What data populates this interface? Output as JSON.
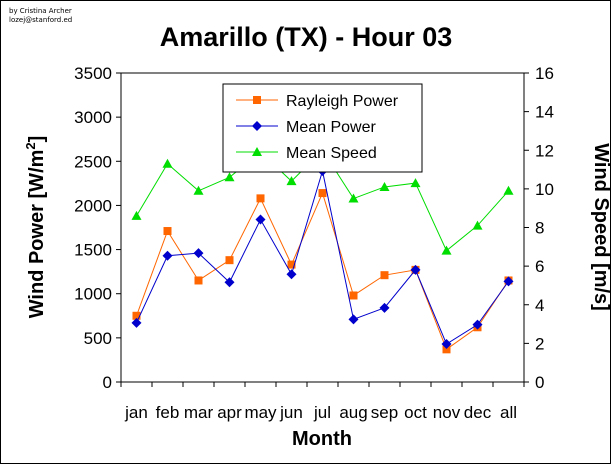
{
  "credit": [
    "by Cristina Archer",
    "lozej@stanford.ed"
  ],
  "chart_data": {
    "type": "line",
    "title": "Amarillo (TX) - Hour 03",
    "xlabel": "Month",
    "ylabel_left": "Wind Power [W/m2]",
    "ylabel_left_base": "Wind Power [W/m",
    "ylabel_left_sup": "2",
    "ylabel_left_close": "]",
    "ylabel_right": "Wind Speed [m/s]",
    "categories": [
      "jan",
      "feb",
      "mar",
      "apr",
      "may",
      "jun",
      "jul",
      "aug",
      "sep",
      "oct",
      "nov",
      "dec",
      "all"
    ],
    "ylim_left": [
      0,
      3500
    ],
    "yticks_left": [
      "0",
      "500",
      "1000",
      "1500",
      "2000",
      "2500",
      "3000",
      "3500"
    ],
    "ylim_right": [
      0,
      16
    ],
    "yticks_right": [
      "0",
      "2",
      "4",
      "6",
      "8",
      "10",
      "12",
      "14",
      "16"
    ],
    "grid": false,
    "legend_position": "top-center",
    "series": [
      {
        "name": "Rayleigh Power",
        "axis": "left",
        "color": "#ff6600",
        "marker": "square",
        "values": [
          750,
          1710,
          1150,
          1380,
          2080,
          1330,
          2140,
          980,
          1210,
          1270,
          370,
          620,
          1150
        ]
      },
      {
        "name": "Mean Power",
        "axis": "left",
        "color": "#0000cc",
        "marker": "diamond",
        "values": [
          670,
          1430,
          1460,
          1130,
          1840,
          1220,
          2390,
          710,
          840,
          1270,
          430,
          650,
          1140
        ]
      },
      {
        "name": "Mean Speed",
        "axis": "right",
        "color": "#00dd00",
        "marker": "triangle",
        "values": [
          8.6,
          11.3,
          9.9,
          10.6,
          11.9,
          10.4,
          12.0,
          9.5,
          10.1,
          10.3,
          6.8,
          8.1,
          9.9
        ]
      }
    ]
  }
}
